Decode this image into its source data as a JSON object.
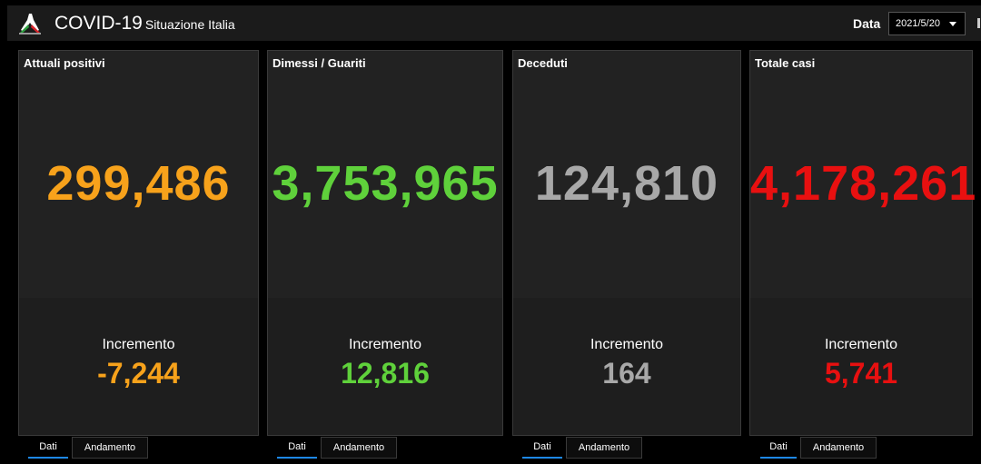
{
  "header": {
    "title": "COVID-19",
    "subtitle": "Situazione Italia",
    "date_label": "Data",
    "date_value": "2021/5/20"
  },
  "cards": [
    {
      "title": "Attuali positivi",
      "value": "299,486",
      "increment_label": "Incremento",
      "increment": "-7,244",
      "color": "#f7a21b"
    },
    {
      "title": "Dimessi / Guariti",
      "value": "3,753,965",
      "increment_label": "Incremento",
      "increment": "12,816",
      "color": "#5fd13b"
    },
    {
      "title": "Deceduti",
      "value": "124,810",
      "increment_label": "Incremento",
      "increment": "164",
      "color": "#a8a8a8"
    },
    {
      "title": "Totale casi",
      "value": "4,178,261",
      "increment_label": "Incremento",
      "increment": "5,741",
      "color": "#e81010"
    }
  ],
  "tabs": {
    "dati": "Dati",
    "andamento": "Andamento"
  }
}
